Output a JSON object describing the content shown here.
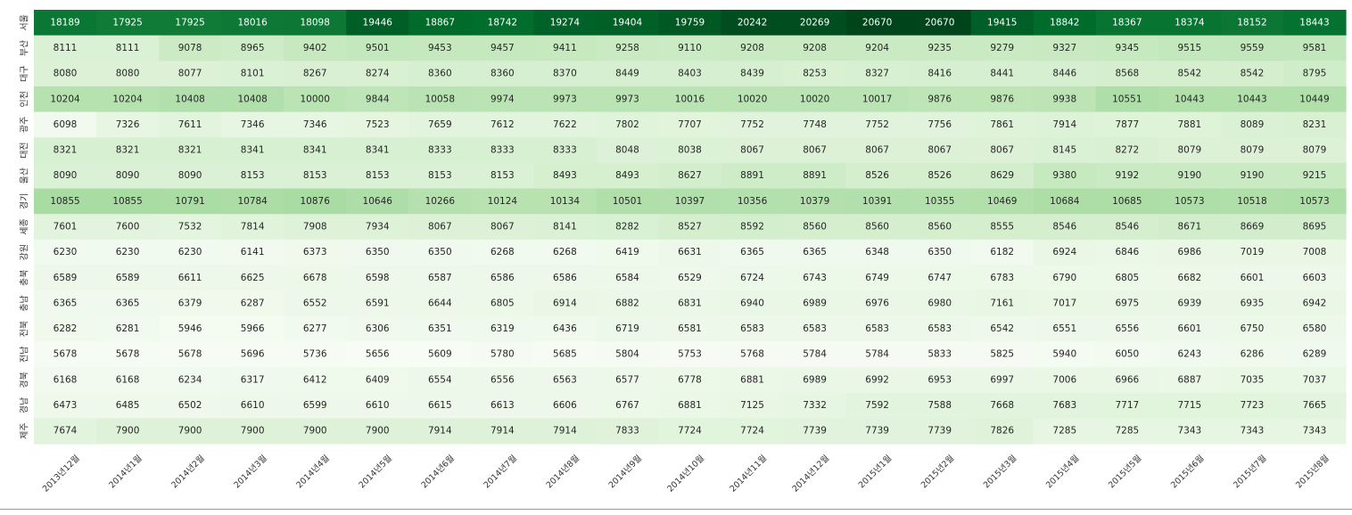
{
  "chart_data": {
    "type": "heatmap",
    "colormap": "Greens",
    "rows": [
      "서울",
      "부산",
      "대구",
      "인천",
      "광주",
      "대전",
      "울산",
      "경기",
      "세종",
      "강원",
      "충북",
      "충남",
      "전북",
      "전남",
      "경북",
      "경남",
      "제주"
    ],
    "columns": [
      "2013년12월",
      "2014년1월",
      "2014년2월",
      "2014년3월",
      "2014년4월",
      "2014년5월",
      "2014년6월",
      "2014년7월",
      "2014년8월",
      "2014년9월",
      "2014년10월",
      "2014년11월",
      "2014년12월",
      "2015년1월",
      "2015년2월",
      "2015년3월",
      "2015년4월",
      "2015년5월",
      "2015년6월",
      "2015년7월",
      "2015년8월"
    ],
    "values": [
      [
        18189,
        17925,
        17925,
        18016,
        18098,
        19446,
        18867,
        18742,
        19274,
        19404,
        19759,
        20242,
        20269,
        20670,
        20670,
        19415,
        18842,
        18367,
        18374,
        18152,
        18443
      ],
      [
        8111,
        8111,
        9078,
        8965,
        9402,
        9501,
        9453,
        9457,
        9411,
        9258,
        9110,
        9208,
        9208,
        9204,
        9235,
        9279,
        9327,
        9345,
        9515,
        9559,
        9581
      ],
      [
        8080,
        8080,
        8077,
        8101,
        8267,
        8274,
        8360,
        8360,
        8370,
        8449,
        8403,
        8439,
        8253,
        8327,
        8416,
        8441,
        8446,
        8568,
        8542,
        8542,
        8795
      ],
      [
        10204,
        10204,
        10408,
        10408,
        10000,
        9844,
        10058,
        9974,
        9973,
        9973,
        10016,
        10020,
        10020,
        10017,
        9876,
        9876,
        9938,
        10551,
        10443,
        10443,
        10449
      ],
      [
        6098,
        7326,
        7611,
        7346,
        7346,
        7523,
        7659,
        7612,
        7622,
        7802,
        7707,
        7752,
        7748,
        7752,
        7756,
        7861,
        7914,
        7877,
        7881,
        8089,
        8231
      ],
      [
        8321,
        8321,
        8321,
        8341,
        8341,
        8341,
        8333,
        8333,
        8333,
        8048,
        8038,
        8067,
        8067,
        8067,
        8067,
        8067,
        8145,
        8272,
        8079,
        8079,
        8079
      ],
      [
        8090,
        8090,
        8090,
        8153,
        8153,
        8153,
        8153,
        8153,
        8493,
        8493,
        8627,
        8891,
        8891,
        8526,
        8526,
        8629,
        9380,
        9192,
        9190,
        9190,
        9215
      ],
      [
        10855,
        10855,
        10791,
        10784,
        10876,
        10646,
        10266,
        10124,
        10134,
        10501,
        10397,
        10356,
        10379,
        10391,
        10355,
        10469,
        10684,
        10685,
        10573,
        10518,
        10573
      ],
      [
        7601,
        7600,
        7532,
        7814,
        7908,
        7934,
        8067,
        8067,
        8141,
        8282,
        8527,
        8592,
        8560,
        8560,
        8560,
        8555,
        8546,
        8546,
        8671,
        8669,
        8695
      ],
      [
        6230,
        6230,
        6230,
        6141,
        6373,
        6350,
        6350,
        6268,
        6268,
        6419,
        6631,
        6365,
        6365,
        6348,
        6350,
        6182,
        6924,
        6846,
        6986,
        7019,
        7008
      ],
      [
        6589,
        6589,
        6611,
        6625,
        6678,
        6598,
        6587,
        6586,
        6586,
        6584,
        6529,
        6724,
        6743,
        6749,
        6747,
        6783,
        6790,
        6805,
        6682,
        6601,
        6603
      ],
      [
        6365,
        6365,
        6379,
        6287,
        6552,
        6591,
        6644,
        6805,
        6914,
        6882,
        6831,
        6940,
        6989,
        6976,
        6980,
        7161,
        7017,
        6975,
        6939,
        6935,
        6942
      ],
      [
        6282,
        6281,
        5946,
        5966,
        6277,
        6306,
        6351,
        6319,
        6436,
        6719,
        6581,
        6583,
        6583,
        6583,
        6583,
        6542,
        6551,
        6556,
        6601,
        6750,
        6580
      ],
      [
        5678,
        5678,
        5678,
        5696,
        5736,
        5656,
        5609,
        5780,
        5685,
        5804,
        5753,
        5768,
        5784,
        5784,
        5833,
        5825,
        5940,
        6050,
        6243,
        6286,
        6289
      ],
      [
        6168,
        6168,
        6234,
        6317,
        6412,
        6409,
        6554,
        6556,
        6563,
        6577,
        6778,
        6881,
        6989,
        6992,
        6953,
        6997,
        7006,
        6966,
        6887,
        7035,
        7037
      ],
      [
        6473,
        6485,
        6502,
        6610,
        6599,
        6610,
        6615,
        6613,
        6606,
        6767,
        6881,
        7125,
        7332,
        7592,
        7588,
        7668,
        7683,
        7717,
        7715,
        7723,
        7665
      ],
      [
        7674,
        7900,
        7900,
        7900,
        7900,
        7900,
        7914,
        7914,
        7914,
        7833,
        7724,
        7724,
        7739,
        7739,
        7739,
        7826,
        7285,
        7285,
        7343,
        7343,
        7343
      ]
    ],
    "annotations": true,
    "colorbar": false
  }
}
